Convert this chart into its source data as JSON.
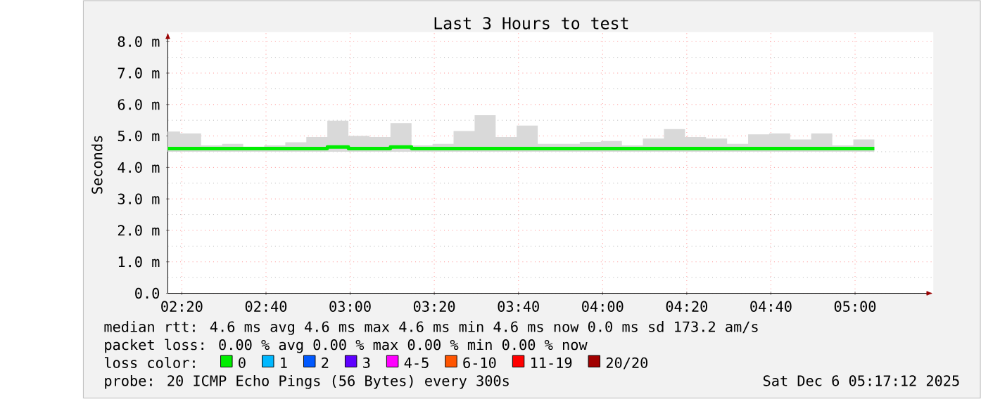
{
  "chart_data": {
    "type": "step",
    "title": "Last 3 Hours to test",
    "ylabel": "Seconds",
    "x": [
      2.2778,
      2.3264,
      2.4097,
      2.4931,
      2.5764,
      2.6597,
      2.7431,
      2.8264,
      2.9097,
      2.9931,
      3.0764,
      3.1597,
      3.2431,
      3.3264,
      3.4097,
      3.4931,
      3.5764,
      3.6597,
      3.7431,
      3.8264,
      3.9097,
      3.9931,
      4.0764,
      4.1597,
      4.2431,
      4.3264,
      4.4097,
      4.4931,
      4.5764,
      4.6597,
      4.7431,
      4.8264,
      4.9097,
      4.9931,
      5.0764
    ],
    "series": [
      {
        "name": "0",
        "color": "#00ee00",
        "values": [
          4.6,
          4.6,
          4.6,
          4.6,
          4.6,
          4.6,
          4.6,
          4.6,
          4.65,
          4.6,
          4.6,
          4.65,
          4.6,
          4.6,
          4.6,
          4.6,
          4.6,
          4.6,
          4.6,
          4.6,
          4.6,
          4.6,
          4.6,
          4.6,
          4.6,
          4.6,
          4.6,
          4.6,
          4.6,
          4.6,
          4.6,
          4.6,
          4.6,
          4.6,
          4.6
        ],
        "lower": [
          4.5,
          4.5,
          4.5,
          4.5,
          4.5,
          4.5,
          4.5,
          4.5,
          4.5,
          4.5,
          4.5,
          4.5,
          4.5,
          4.5,
          4.5,
          4.5,
          4.5,
          4.5,
          4.5,
          4.5,
          4.5,
          4.5,
          4.5,
          4.5,
          4.5,
          4.5,
          4.5,
          4.5,
          4.5,
          4.5,
          4.5,
          4.5,
          4.5,
          4.5,
          4.5
        ],
        "upper": [
          5.14,
          5.08,
          4.7,
          4.75,
          4.66,
          4.7,
          4.8,
          4.97,
          5.49,
          5.0,
          4.97,
          5.41,
          4.7,
          4.75,
          5.16,
          5.66,
          4.97,
          5.33,
          4.75,
          4.75,
          4.81,
          4.84,
          4.7,
          4.92,
          5.22,
          4.97,
          4.92,
          4.75,
          5.05,
          5.08,
          4.89,
          5.08,
          4.7,
          4.89,
          5.14
        ]
      },
      {
        "name": "1",
        "color": "#00b8ff",
        "values": [
          null,
          null,
          null,
          null,
          null,
          null,
          null,
          null,
          null,
          null,
          null,
          null,
          null,
          null,
          null,
          null,
          null,
          null,
          null,
          null,
          null,
          null,
          null,
          null,
          null,
          null,
          null,
          null,
          null,
          null,
          null,
          null,
          null,
          null,
          null
        ]
      },
      {
        "name": "2",
        "color": "#0059ff",
        "values": [
          null,
          null,
          null,
          null,
          null,
          null,
          null,
          null,
          null,
          null,
          null,
          null,
          null,
          null,
          null,
          null,
          null,
          null,
          null,
          null,
          null,
          null,
          null,
          null,
          null,
          null,
          null,
          null,
          null,
          null,
          null,
          null,
          null,
          null,
          null
        ]
      },
      {
        "name": "3",
        "color": "#5e00ff",
        "values": [
          null,
          null,
          null,
          null,
          null,
          null,
          null,
          null,
          null,
          null,
          null,
          null,
          null,
          null,
          null,
          null,
          null,
          null,
          null,
          null,
          null,
          null,
          null,
          null,
          null,
          null,
          null,
          null,
          null,
          null,
          null,
          null,
          null,
          null,
          null
        ]
      },
      {
        "name": "4-5",
        "color": "#ff00ff",
        "values": [
          null,
          null,
          null,
          null,
          null,
          null,
          null,
          null,
          null,
          null,
          null,
          null,
          null,
          null,
          null,
          null,
          null,
          null,
          null,
          null,
          null,
          null,
          null,
          null,
          null,
          null,
          null,
          null,
          null,
          null,
          null,
          null,
          null,
          null,
          null
        ]
      },
      {
        "name": "6-10",
        "color": "#ff5500",
        "values": [
          null,
          null,
          null,
          null,
          null,
          null,
          null,
          null,
          null,
          null,
          null,
          null,
          null,
          null,
          null,
          null,
          null,
          null,
          null,
          null,
          null,
          null,
          null,
          null,
          null,
          null,
          null,
          null,
          null,
          null,
          null,
          null,
          null,
          null,
          null
        ]
      },
      {
        "name": "11-19",
        "color": "#ff0000",
        "values": [
          null,
          null,
          null,
          null,
          null,
          null,
          null,
          null,
          null,
          null,
          null,
          null,
          null,
          null,
          null,
          null,
          null,
          null,
          null,
          null,
          null,
          null,
          null,
          null,
          null,
          null,
          null,
          null,
          null,
          null,
          null,
          null,
          null,
          null,
          null
        ]
      },
      {
        "name": "20/20",
        "color": "#a10000",
        "values": [
          null,
          null,
          null,
          null,
          null,
          null,
          null,
          null,
          null,
          null,
          null,
          null,
          null,
          null,
          null,
          null,
          null,
          null,
          null,
          null,
          null,
          null,
          null,
          null,
          null,
          null,
          null,
          null,
          null,
          null,
          null,
          null,
          null,
          null,
          null
        ]
      }
    ],
    "legend_title": "loss color:",
    "legend": "bottom",
    "xlim": [
      2.2778,
      5.31
    ],
    "xticks": [
      {
        "value": 2.3333,
        "label": "02:20"
      },
      {
        "value": 2.6667,
        "label": "02:40"
      },
      {
        "value": 3,
        "label": "03:00"
      },
      {
        "value": 3.3333,
        "label": "03:20"
      },
      {
        "value": 3.6667,
        "label": "03:40"
      },
      {
        "value": 4,
        "label": "04:00"
      },
      {
        "value": 4.3333,
        "label": "04:20"
      },
      {
        "value": 4.6667,
        "label": "04:40"
      },
      {
        "value": 5,
        "label": "05:00"
      }
    ],
    "ylim": [
      0,
      8.3
    ],
    "yticks": [
      {
        "value": 0,
        "label": "0.0"
      },
      {
        "value": 1,
        "label": "1.0 m"
      },
      {
        "value": 2,
        "label": "2.0 m"
      },
      {
        "value": 3,
        "label": "3.0 m"
      },
      {
        "value": 4,
        "label": "4.0 m"
      },
      {
        "value": 5,
        "label": "5.0 m"
      },
      {
        "value": 6,
        "label": "6.0 m"
      },
      {
        "value": 7,
        "label": "7.0 m"
      },
      {
        "value": 8,
        "label": "8.0 m"
      }
    ],
    "grid": true,
    "marker": "none",
    "line_style": "solid",
    "annotations": [
      "median rtt: 4.6 ms avg 4.6 ms max 4.6 ms min 4.6 ms now 0.0 ms sd 173.2 am/s",
      "packet loss: 0.00 % avg 0.00 % max 0.00 % min 0.00 % now",
      "probe: 20 ICMP Echo Pings (56 Bytes) every 300s",
      "Sat Dec 6 05:17:12 2025"
    ]
  }
}
